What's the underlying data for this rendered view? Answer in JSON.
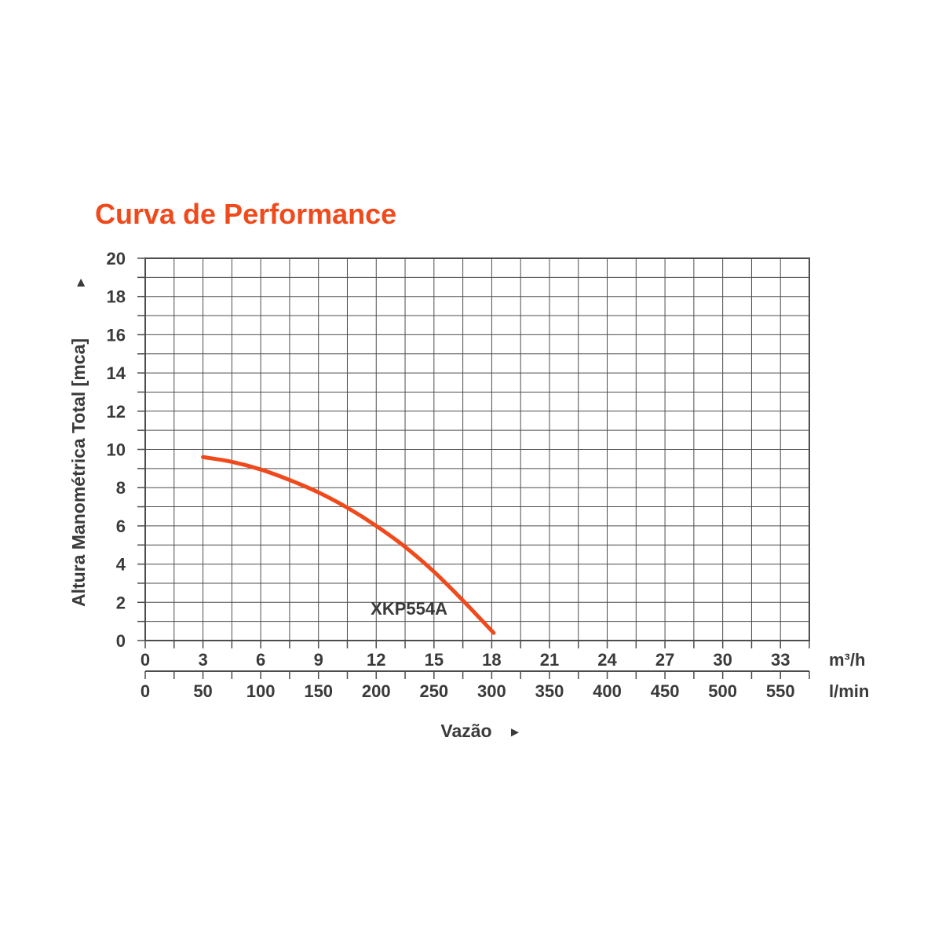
{
  "colors": {
    "title": "#f04a1c",
    "curve": "#f04a1c",
    "text": "#3a3a3a",
    "grid": "#4d4d4d",
    "frame": "#4d4d4d"
  },
  "chart_data": {
    "type": "line",
    "title": "Curva de Performance",
    "xlabel": "Vazão",
    "ylabel": "Altura Manométrica Total [mca]",
    "x_axis_arrow": "►",
    "y_axis_arrow": "►",
    "x_unit_primary": "m³/h",
    "x_unit_secondary": "l/min",
    "xlim": [
      0,
      34.5
    ],
    "ylim": [
      0,
      20
    ],
    "x_ticks_primary": [
      "0",
      "3",
      "6",
      "9",
      "12",
      "15",
      "18",
      "21",
      "24",
      "27",
      "30",
      "33"
    ],
    "x_ticks_secondary": [
      "0",
      "50",
      "100",
      "150",
      "200",
      "250",
      "300",
      "350",
      "400",
      "450",
      "500",
      "550"
    ],
    "y_ticks": [
      "0",
      "2",
      "4",
      "6",
      "8",
      "10",
      "12",
      "14",
      "16",
      "18",
      "20"
    ],
    "grid": true,
    "series": [
      {
        "name": "XKP554A",
        "x": [
          3,
          4.5,
          6,
          7.5,
          9,
          10.5,
          12,
          13.5,
          15,
          16.5,
          18.1
        ],
        "y": [
          9.6,
          9.35,
          8.95,
          8.4,
          7.75,
          6.95,
          6.0,
          4.9,
          3.6,
          2.1,
          0.4
        ]
      }
    ]
  }
}
